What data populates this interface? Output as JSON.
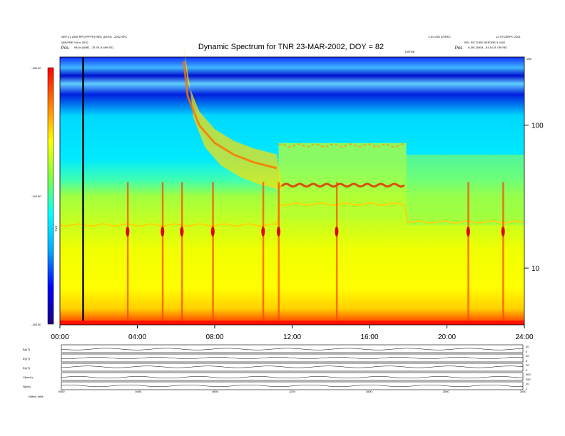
{
  "chart_data": {
    "type": "heatmap",
    "title": "Dynamic Spectrum for TNR 23-MAR-2002, DOY = 82",
    "header_left": [
      "SEP 21 2005 RPCFPFFP(TNR) (100%) - 2002 SPC",
      "MIN/FRE 9.8 m 2032"
    ],
    "header_right": [
      "1.10 VED DSPEC",
      "L2 STOSRPC 2001",
      "REL PICTURE BEFORE 9.2002"
    ],
    "pos_left_label": "Pos",
    "pos_left_value": "98.84 (8482, -75.39, 8.489 SE)",
    "pos_right_label": "Pos",
    "pos_right_value": "8.281 (5818, -81.16, 8.789 SE)",
    "legend_tag": "DSFDE",
    "right_axis_unit": "kHz",
    "colorbar": {
      "min_label": "-155.00",
      "mid_label": "-142.50",
      "max_label": "-130.00",
      "side_label": "TNR",
      "stops": [
        "#1a0080",
        "#0000ff",
        "#00a8ff",
        "#00ffff",
        "#7fff40",
        "#ffff00",
        "#ff8000",
        "#ff0000"
      ]
    },
    "x_axis": {
      "range_hours": [
        0,
        24
      ],
      "ticks": [
        {
          "hour": 0,
          "label": "00:00"
        },
        {
          "hour": 4,
          "label": "04:00"
        },
        {
          "hour": 8,
          "label": "08:00"
        },
        {
          "hour": 12,
          "label": "12:00"
        },
        {
          "hour": 16,
          "label": "16:00"
        },
        {
          "hour": 20,
          "label": "20:00"
        },
        {
          "hour": 24,
          "label": "24:00"
        }
      ]
    },
    "y_axis": {
      "scale": "log",
      "range_khz": [
        4,
        300
      ],
      "ticks": [
        {
          "value": 10,
          "label": "10"
        },
        {
          "value": 100,
          "label": "100"
        }
      ]
    },
    "features": {
      "drift_burst_start_hour": 6.4,
      "drift_burst_end_hour": 11.2,
      "elevated_band_start_hour": 11.3,
      "elevated_band_end_hour": 17.9,
      "black_line_hour": 1.2,
      "spikes_hours": [
        3.5,
        5.3,
        6.3,
        7.9,
        10.5,
        11.3,
        14.3,
        21.1,
        22.9
      ]
    },
    "aux_panels": [
      {
        "label": "B(nT)",
        "right_ticks": [
          "20",
          "0"
        ],
        "level": 0.45
      },
      {
        "label": "E(nT)",
        "right_ticks": [
          "20",
          "0"
        ],
        "level": 0.5
      },
      {
        "label": "E(nT)",
        "right_ticks": [
          "20",
          "0"
        ],
        "level": 0.55
      },
      {
        "label": "V(km/s)",
        "right_ticks": [
          "500",
          "250"
        ],
        "level": 0.4
      },
      {
        "label": "N(cm)",
        "right_ticks": [
          "10",
          "1"
        ],
        "level": 0.5
      }
    ],
    "aux_x_labels": [
      "0000",
      "0400",
      "0800",
      "1200",
      "1600",
      "2000",
      "2400"
    ],
    "bottom_note": "Notes: orbit"
  }
}
